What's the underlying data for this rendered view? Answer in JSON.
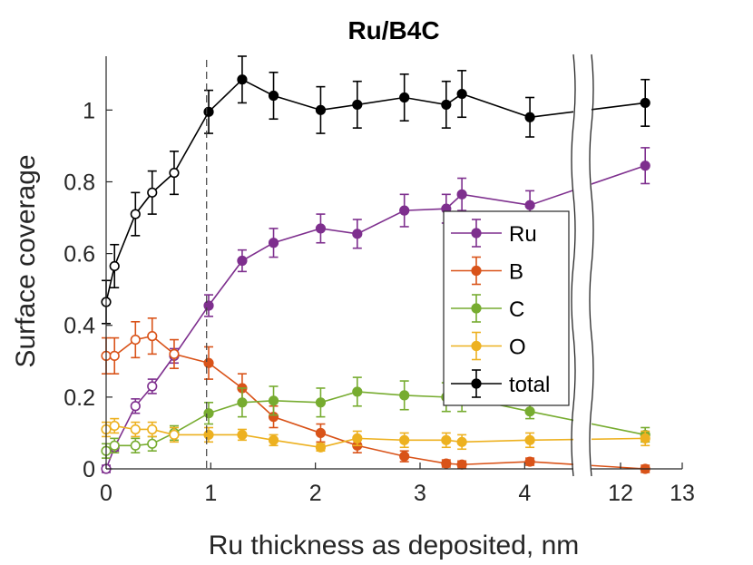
{
  "chart_data": {
    "type": "line",
    "title": "Ru/B4C",
    "xlabel": "Ru thickness as deposited, nm",
    "ylabel": "Surface coverage",
    "xlim": [
      0,
      13
    ],
    "ylim": [
      0,
      1.15
    ],
    "x_axis_break": {
      "from": 4.5,
      "to": 11.5,
      "note": "broken axis between 4 and 12"
    },
    "x_ticks": [
      0,
      1,
      2,
      3,
      4,
      12,
      13
    ],
    "x_tick_labels": [
      "0",
      "1",
      "2",
      "3",
      "4",
      "12",
      "13"
    ],
    "y_ticks": [
      0,
      0.2,
      0.4,
      0.6,
      0.8,
      1
    ],
    "y_tick_labels": [
      "0",
      "0.2",
      "0.4",
      "0.6",
      "0.8",
      "1"
    ],
    "reference_line_x": 0.96,
    "grid": false,
    "legend_position": "center-right",
    "series": [
      {
        "name": "Ru",
        "color": "#7E2F8E",
        "x": [
          0.0,
          0.08,
          0.28,
          0.44,
          0.65,
          0.98,
          1.3,
          1.6,
          2.05,
          2.4,
          2.85,
          3.25,
          3.4,
          4.05,
          12.4
        ],
        "y": [
          0.0,
          0.06,
          0.175,
          0.23,
          0.315,
          0.455,
          0.58,
          0.63,
          0.67,
          0.655,
          0.72,
          0.725,
          0.765,
          0.735,
          0.845
        ],
        "err": [
          0.01,
          0.01,
          0.02,
          0.02,
          0.02,
          0.03,
          0.03,
          0.04,
          0.04,
          0.04,
          0.045,
          0.04,
          0.045,
          0.04,
          0.05
        ],
        "open_marker_count": 5
      },
      {
        "name": "B",
        "color": "#D95319",
        "x": [
          0.0,
          0.08,
          0.28,
          0.44,
          0.65,
          0.98,
          1.3,
          1.6,
          2.05,
          2.4,
          2.85,
          3.25,
          3.4,
          4.05,
          12.4
        ],
        "y": [
          0.315,
          0.315,
          0.36,
          0.37,
          0.32,
          0.295,
          0.225,
          0.145,
          0.1,
          0.065,
          0.035,
          0.015,
          0.012,
          0.02,
          0.0
        ],
        "err": [
          0.05,
          0.05,
          0.05,
          0.05,
          0.04,
          0.045,
          0.04,
          0.03,
          0.025,
          0.02,
          0.015,
          0.01,
          0.01,
          0.01,
          0.01
        ],
        "open_marker_count": 5
      },
      {
        "name": "C",
        "color": "#77AC30",
        "x": [
          0.0,
          0.08,
          0.28,
          0.44,
          0.65,
          0.98,
          1.3,
          1.6,
          2.05,
          2.4,
          2.85,
          3.25,
          3.4,
          4.05,
          12.4
        ],
        "y": [
          0.05,
          0.065,
          0.065,
          0.07,
          0.1,
          0.155,
          0.185,
          0.19,
          0.185,
          0.215,
          0.205,
          0.2,
          0.2,
          0.16,
          0.095
        ],
        "err": [
          0.02,
          0.02,
          0.02,
          0.02,
          0.02,
          0.03,
          0.04,
          0.04,
          0.04,
          0.04,
          0.04,
          0.04,
          0.04,
          0.02,
          0.02
        ],
        "open_marker_count": 5
      },
      {
        "name": "O",
        "color": "#EDB120",
        "x": [
          0.0,
          0.08,
          0.28,
          0.44,
          0.65,
          0.98,
          1.3,
          1.6,
          2.05,
          2.4,
          2.85,
          3.25,
          3.4,
          4.05,
          12.4
        ],
        "y": [
          0.11,
          0.12,
          0.11,
          0.11,
          0.095,
          0.095,
          0.095,
          0.08,
          0.06,
          0.085,
          0.08,
          0.08,
          0.075,
          0.08,
          0.085
        ],
        "err": [
          0.02,
          0.02,
          0.02,
          0.02,
          0.02,
          0.02,
          0.015,
          0.015,
          0.01,
          0.02,
          0.02,
          0.02,
          0.02,
          0.02,
          0.02
        ],
        "open_marker_count": 5
      },
      {
        "name": "total",
        "color": "#000000",
        "x": [
          0.0,
          0.08,
          0.28,
          0.44,
          0.65,
          0.98,
          1.3,
          1.6,
          2.05,
          2.4,
          2.85,
          3.25,
          3.4,
          4.05,
          12.4
        ],
        "y": [
          0.465,
          0.565,
          0.71,
          0.77,
          0.825,
          0.995,
          1.085,
          1.04,
          1.0,
          1.015,
          1.035,
          1.015,
          1.045,
          0.98,
          1.02
        ],
        "err": [
          0.06,
          0.06,
          0.06,
          0.06,
          0.06,
          0.06,
          0.065,
          0.065,
          0.065,
          0.065,
          0.065,
          0.065,
          0.065,
          0.055,
          0.065
        ],
        "open_marker_count": 5
      }
    ]
  }
}
